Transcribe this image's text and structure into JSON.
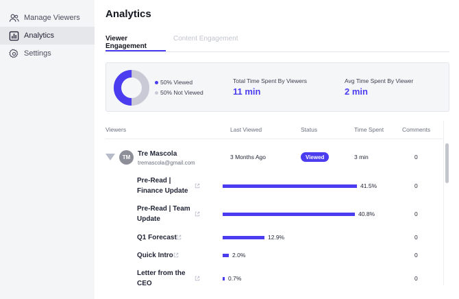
{
  "sidebar": {
    "items": [
      {
        "label": "Manage Viewers",
        "icon": "users-icon"
      },
      {
        "label": "Analytics",
        "icon": "analytics-icon",
        "active": true
      },
      {
        "label": "Settings",
        "icon": "gear-icon"
      }
    ]
  },
  "page": {
    "title": "Analytics"
  },
  "tabs": [
    {
      "label": "Viewer Engagement",
      "active": true
    },
    {
      "label": "Content Engagement",
      "active": false
    }
  ],
  "summary": {
    "donut": {
      "viewed_pct": 50,
      "viewed_color": "#4b3cf0",
      "not_viewed_color": "#c9cad6"
    },
    "legend": [
      {
        "label": "50% Viewed",
        "color": "#4b3cf0"
      },
      {
        "label": "50% Not Viewed",
        "color": "#c9cad6"
      }
    ],
    "total_time_label": "Total Time Spent By Viewers",
    "total_time_value": "11 min",
    "avg_time_label": "Avg Time Spent By Viewer",
    "avg_time_value": "2 min"
  },
  "table": {
    "headers": [
      "Viewers",
      "Last Viewed",
      "Status",
      "Time Spent",
      "Comments"
    ],
    "viewer": {
      "initials": "TM",
      "name": "Tre Mascola",
      "email": "tremascola@gmail.com",
      "last_viewed": "3 Months Ago",
      "status": "Viewed",
      "time_spent": "3 min",
      "comments": "0"
    },
    "documents": [
      {
        "title": "Pre-Read | Finance Update",
        "percent_label": "41.5%",
        "percent": 41.5,
        "comments": "0"
      },
      {
        "title": "Pre-Read | Team Update",
        "percent_label": "40.8%",
        "percent": 40.8,
        "comments": "0"
      },
      {
        "title": "Q1 Forecast",
        "percent_label": "12.9%",
        "percent": 12.9,
        "comments": "0"
      },
      {
        "title": "Quick Intro",
        "percent_label": "2.0%",
        "percent": 2.0,
        "comments": "0"
      },
      {
        "title": "Letter from the CEO",
        "percent_label": "0.7%",
        "percent": 0.7,
        "comments": "0"
      }
    ]
  },
  "colors": {
    "accent": "#4b3cf0"
  }
}
